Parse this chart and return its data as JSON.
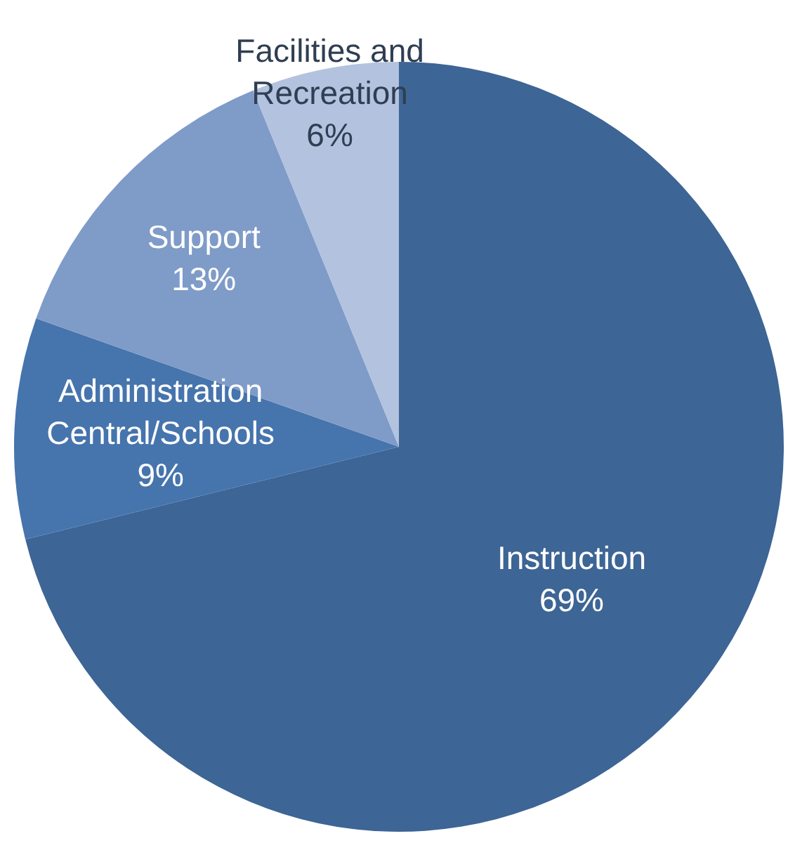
{
  "chart_data": {
    "type": "pie",
    "categories": [
      "Instruction",
      "Administration Central/Schools",
      "Support",
      "Facilities and Recreation"
    ],
    "values": [
      69,
      9,
      13,
      6
    ],
    "colors": [
      "#3d6595",
      "#4674ad",
      "#7f9bc8",
      "#b3c2de"
    ],
    "value_labels": [
      "69%",
      "9%",
      "13%",
      "6%"
    ]
  }
}
